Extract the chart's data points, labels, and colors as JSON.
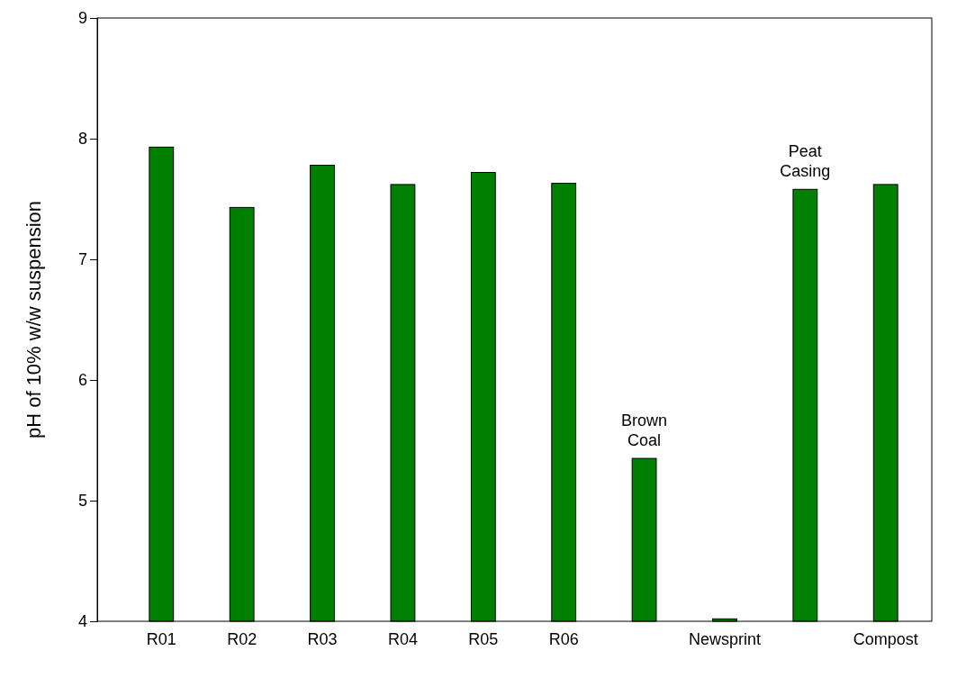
{
  "chart_data": {
    "type": "bar",
    "ylabel": "pH of 10% w/w suspension",
    "categories": [
      "R01",
      "R02",
      "R03",
      "R04",
      "R05",
      "R06",
      null,
      "Newsprint",
      null,
      "Compost"
    ],
    "values": [
      7.93,
      7.43,
      7.78,
      7.62,
      7.72,
      7.63,
      5.35,
      4.02,
      7.58,
      7.62
    ],
    "color": "#008000",
    "ylim": [
      4,
      9
    ],
    "yticks": [
      4,
      5,
      6,
      7,
      8,
      9
    ],
    "grid": false,
    "annotations": [
      {
        "text": "Brown Coal",
        "y": 5.35
      },
      {
        "text": "Peat Casing",
        "y": 7.58
      }
    ]
  }
}
